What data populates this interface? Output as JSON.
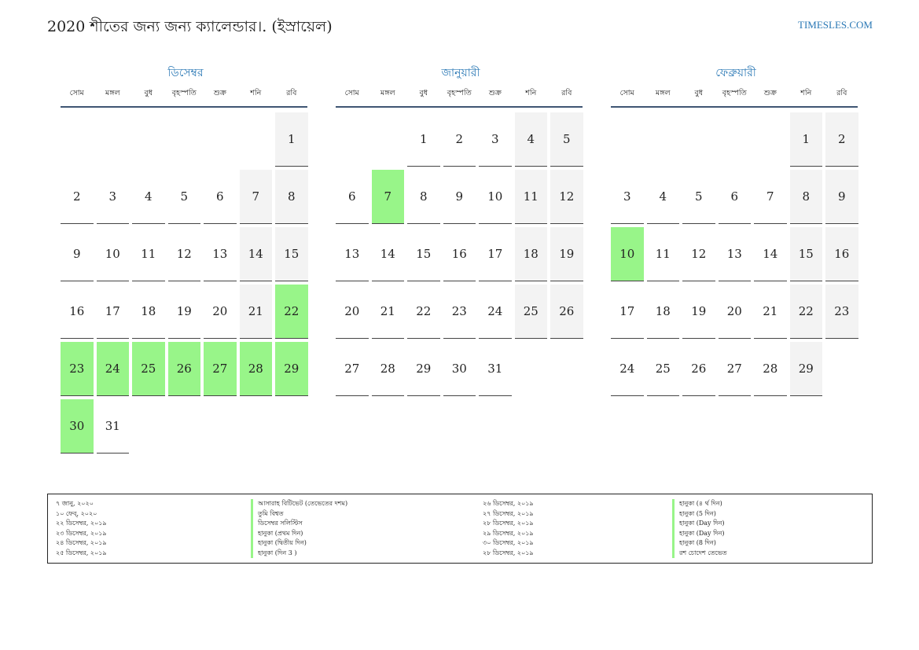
{
  "header": {
    "title": "2020 শীতের জন্য জন্য ক্যালেন্ডার।. (ইস্রায়েল)",
    "site": "TIMESLES.COM"
  },
  "colors": {
    "accent": "#2a78b5",
    "holiday": "#98f589",
    "weekend": "#f3f3f3",
    "rule": "#3f5573"
  },
  "weekdays": [
    "সোম",
    "মঙ্গল",
    "বুধ",
    "বৃহস্পতি",
    "শুক্র",
    "শনি",
    "রবি"
  ],
  "months": [
    {
      "name": "ডিসেম্বর",
      "offset": 6,
      "days": 31,
      "holidays": [
        22,
        23,
        24,
        25,
        26,
        27,
        28,
        29,
        30
      ]
    },
    {
      "name": "জানুয়ারী",
      "offset": 2,
      "days": 31,
      "holidays": [
        7
      ]
    },
    {
      "name": "ফেব্রুয়ারী",
      "offset": 5,
      "days": 29,
      "holidays": [
        10
      ]
    }
  ],
  "legend": [
    {
      "date1": "৭ জানু, ২০২০",
      "name1": "আসারাহ বিটিভেট (তেভেতের দশম)",
      "date2": "২৬ ডিসেম্বর, ২০১৯",
      "name2": "হানুকা (৪ র্থ দিন)"
    },
    {
      "date1": "১০ ফেব্, ২০২০",
      "name1": "তুমি বিশ্বত",
      "date2": "২৭ ডিসেম্বর, ২০১৯",
      "name2": "হানুকা (5 দিন)"
    },
    {
      "date1": "২২ ডিসেম্বর, ২০১৯",
      "name1": "ডিসেম্বর সলিস্টিস",
      "date2": "২৮ ডিসেম্বর, ২০১৯",
      "name2": "হানুকা (Day দিন)"
    },
    {
      "date1": "২৩ ডিসেম্বর, ২০১৯",
      "name1": "হানুকা (প্রথম দিন)",
      "date2": "২৯ ডিসেম্বর, ২০১৯",
      "name2": "হানুকা (Day দিন)"
    },
    {
      "date1": "২৪ ডিসেম্বর, ২০১৯",
      "name1": "হানুকা (দ্বিতীয় দিন)",
      "date2": "৩০ ডিসেম্বর, ২০১৯",
      "name2": "হানুকা (8 দিন)"
    },
    {
      "date1": "২৫ ডিসেম্বর, ২০১৯",
      "name1": "হানুকা (দিন 3 )",
      "date2": "২৮ ডিসেম্বর, ২০১৯",
      "name2": "রশ চোদেশ তেভেত"
    }
  ]
}
